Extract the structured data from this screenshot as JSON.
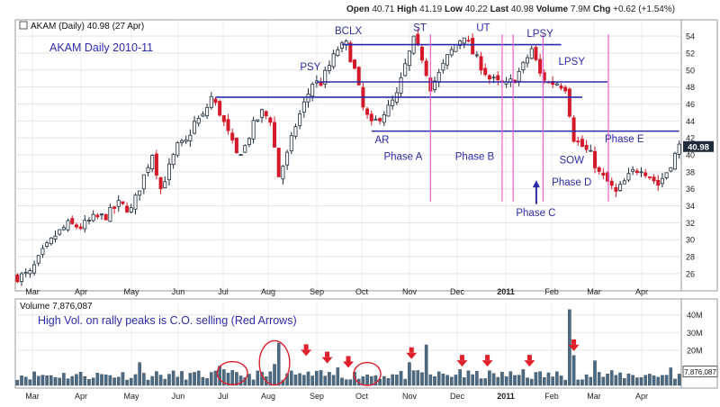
{
  "header": {
    "open_label": "Open",
    "open": "40.71",
    "high_label": "High",
    "high": "41.19",
    "low_label": "Low",
    "low": "40.22",
    "last_label": "Last",
    "last": "40.98",
    "volume_label": "Volume",
    "volume": "7.9M",
    "chg_label": "Chg",
    "chg": "+0.62 (+1.54%)"
  },
  "chart_data": [
    {
      "type": "candlestick",
      "legend": "AKAM (Daily) 40.98 (27 Apr)",
      "title": "AKAM Daily 2010-11",
      "ylim": [
        24.5,
        55.5
      ],
      "yticks": [
        26,
        28,
        30,
        32,
        34,
        36,
        38,
        40,
        42,
        44,
        46,
        48,
        50,
        52,
        54
      ],
      "last_price_label": "40.98",
      "x_labels": [
        "Mar",
        "Apr",
        "May",
        "Jun",
        "Jul",
        "Aug",
        "Sep",
        "Oct",
        "Nov",
        "Dec",
        "2011",
        "Feb",
        "Mar",
        "Apr"
      ],
      "price_path": [
        [
          0,
          25.6
        ],
        [
          3,
          26.0
        ],
        [
          6,
          28.5
        ],
        [
          9,
          30.5
        ],
        [
          12,
          31.8
        ],
        [
          15,
          31.5
        ],
        [
          18,
          32.5
        ],
        [
          21,
          32.8
        ],
        [
          24,
          34.2
        ],
        [
          27,
          33.5
        ],
        [
          30,
          37.5
        ],
        [
          32,
          40.2
        ],
        [
          34,
          36.0
        ],
        [
          36,
          38.5
        ],
        [
          38,
          41.0
        ],
        [
          40,
          41.5
        ],
        [
          42,
          43.8
        ],
        [
          44,
          44.5
        ],
        [
          46,
          46.8
        ],
        [
          48,
          45.0
        ],
        [
          50,
          42.5
        ],
        [
          52,
          40.0
        ],
        [
          54,
          41.0
        ],
        [
          56,
          43.5
        ],
        [
          58,
          45.0
        ],
        [
          60,
          44.2
        ],
        [
          62,
          37.5
        ],
        [
          64,
          40.0
        ],
        [
          66,
          43.5
        ],
        [
          68,
          46.0
        ],
        [
          70,
          48.5
        ],
        [
          72,
          48.5
        ],
        [
          74,
          50.5
        ],
        [
          76,
          52.5
        ],
        [
          78,
          53.0
        ],
        [
          80,
          50.0
        ],
        [
          82,
          45.5
        ],
        [
          84,
          43.5
        ],
        [
          86,
          44.5
        ],
        [
          88,
          45.5
        ],
        [
          90,
          47.0
        ],
        [
          92,
          50.5
        ],
        [
          94,
          53.5
        ],
        [
          96,
          51.5
        ],
        [
          98,
          48.0
        ],
        [
          100,
          49.5
        ],
        [
          102,
          51.5
        ],
        [
          104,
          53.0
        ],
        [
          106,
          54.2
        ],
        [
          108,
          52.0
        ],
        [
          110,
          50.5
        ],
        [
          112,
          49.0
        ],
        [
          114,
          48.5
        ],
        [
          116,
          48.2
        ],
        [
          118,
          49.0
        ],
        [
          120,
          50.5
        ],
        [
          122,
          52.5
        ],
        [
          124,
          49.5
        ],
        [
          126,
          48.5
        ],
        [
          128,
          48.5
        ],
        [
          130,
          48.0
        ],
        [
          132,
          42.0
        ],
        [
          134,
          41.0
        ],
        [
          136,
          40.0
        ],
        [
          138,
          37.8
        ],
        [
          140,
          36.8
        ],
        [
          142,
          35.5
        ],
        [
          144,
          36.8
        ],
        [
          146,
          38.0
        ],
        [
          148,
          38.5
        ],
        [
          150,
          37.5
        ],
        [
          152,
          36.5
        ],
        [
          154,
          38.0
        ],
        [
          156,
          40.0
        ],
        [
          157,
          40.98
        ]
      ],
      "horizontal_lines": [
        {
          "y": 53.0,
          "x_from": 77,
          "x_to": 129
        },
        {
          "y": 48.6,
          "x_from": 71,
          "x_to": 140
        },
        {
          "y": 46.8,
          "x_from": 47,
          "x_to": 134
        },
        {
          "y": 42.8,
          "x_from": 84,
          "x_to": 157
        }
      ],
      "phase_lines": [
        98,
        115,
        117.6,
        124.7,
        140.2
      ],
      "annotations": [
        {
          "text": "BCLX",
          "x": 78.5,
          "y": 54.2
        },
        {
          "text": "ST",
          "x": 95.5,
          "y": 54.6
        },
        {
          "text": "UT",
          "x": 110.5,
          "y": 54.6
        },
        {
          "text": "LPSY",
          "x": 124,
          "y": 53.9
        },
        {
          "text": "PSY",
          "x": 69.5,
          "y": 50.0
        },
        {
          "text": "LPSY",
          "x": 131.5,
          "y": 50.6
        },
        {
          "text": "AR",
          "x": 86.5,
          "y": 41.4
        },
        {
          "text": "Phase A",
          "x": 91.5,
          "y": 39.4
        },
        {
          "text": "Phase B",
          "x": 108.5,
          "y": 39.4
        },
        {
          "text": "Phase C",
          "x": 123,
          "y": 32.8
        },
        {
          "text": "Phase D",
          "x": 131.5,
          "y": 36.4
        },
        {
          "text": "SOW",
          "x": 131.5,
          "y": 39.0
        },
        {
          "text": "Phase E",
          "x": 144,
          "y": 41.5
        }
      ],
      "up_arrow": {
        "x": 123.1,
        "from": 34.2,
        "to": 36.8
      }
    },
    {
      "type": "bar",
      "legend": "Volume 7,876,087",
      "note": "High Vol. on rally peaks is C.O. selling (Red Arrows)",
      "ylim": [
        0,
        47
      ],
      "yticks": [
        20,
        30,
        40
      ],
      "ytick_labels": [
        "20M",
        "30M",
        "40M"
      ],
      "last_volume_label": "7,876,087",
      "last_volume": 7.88,
      "spikes": [
        {
          "x": 29,
          "value": 13
        },
        {
          "x": 48,
          "value": 11
        },
        {
          "x": 49,
          "value": 9
        },
        {
          "x": 61,
          "value": 12
        },
        {
          "x": 62,
          "value": 24
        },
        {
          "x": 76,
          "value": 10
        },
        {
          "x": 93,
          "value": 13
        },
        {
          "x": 97,
          "value": 23
        },
        {
          "x": 105,
          "value": 9
        },
        {
          "x": 120,
          "value": 9
        },
        {
          "x": 131,
          "value": 43
        },
        {
          "x": 132,
          "value": 17
        },
        {
          "x": 137,
          "value": 14
        },
        {
          "x": 155,
          "value": 10
        }
      ],
      "red_arrows": [
        {
          "x": 68.5,
          "y": 18.2
        },
        {
          "x": 73.5,
          "y": 14.0
        },
        {
          "x": 78.5,
          "y": 11.5
        },
        {
          "x": 93.5,
          "y": 16.5
        },
        {
          "x": 105.5,
          "y": 12.2
        },
        {
          "x": 111.5,
          "y": 12.2
        },
        {
          "x": 121.5,
          "y": 12.2
        },
        {
          "x": 132,
          "y": 21.0
        }
      ],
      "circles": [
        {
          "x": 51,
          "y": 7.0,
          "rx_days": 1.8,
          "ry_value": 6.5
        },
        {
          "x": 61,
          "y": 12.8,
          "rx_days": 1.8,
          "ry_value": 12.5
        },
        {
          "x": 83,
          "y": 6.5,
          "rx_days": 1.6,
          "ry_value": 6.5
        }
      ]
    }
  ]
}
